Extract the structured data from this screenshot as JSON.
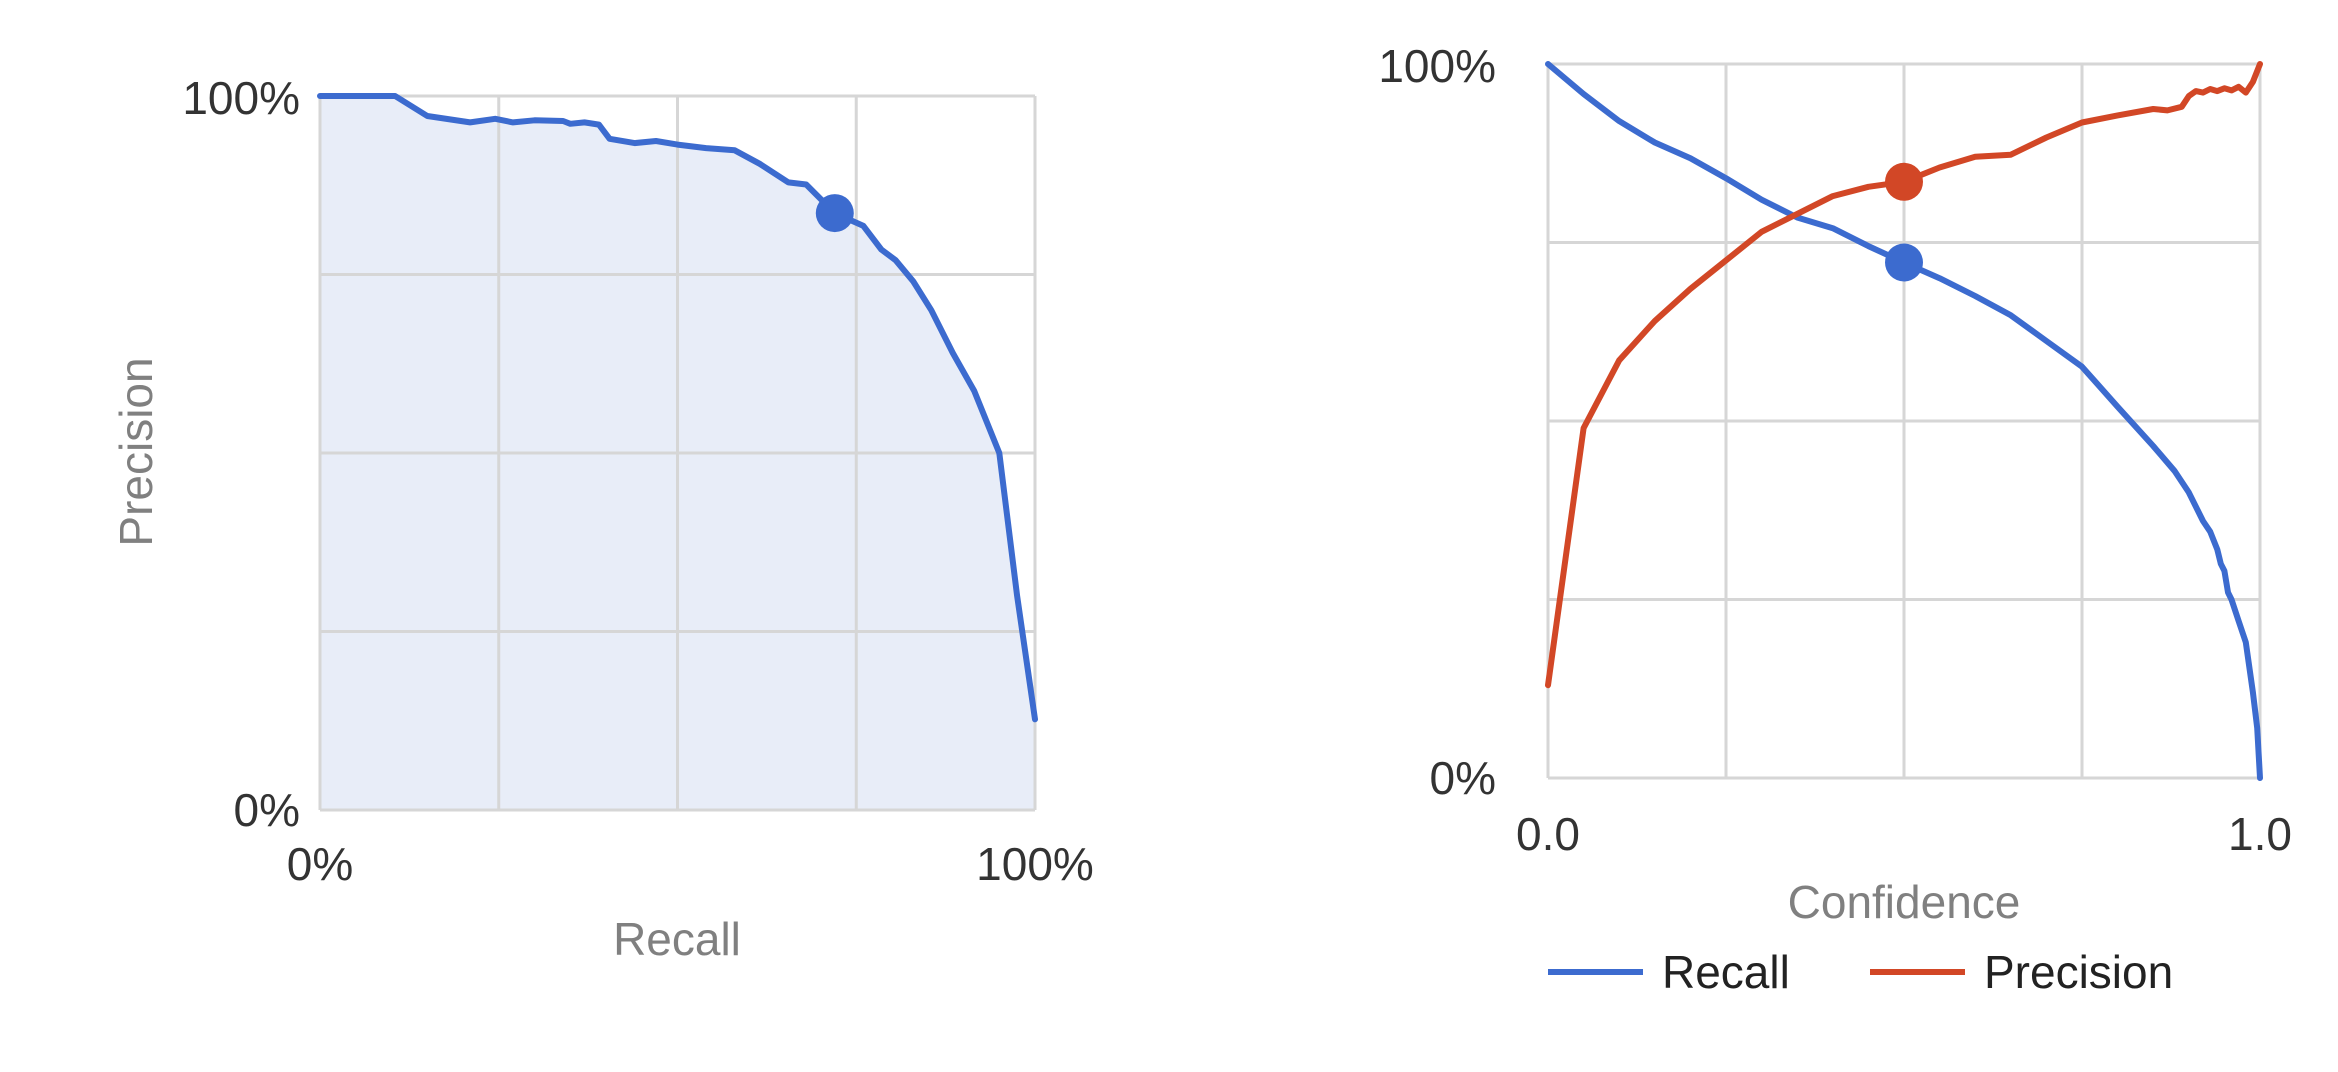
{
  "chart_data": [
    {
      "type": "area",
      "xlabel": "Recall",
      "ylabel": "Precision",
      "x_ticks": [
        "0%",
        "100%"
      ],
      "y_ticks": [
        "0%",
        "100%"
      ],
      "xlim": [
        0,
        1
      ],
      "ylim": [
        0,
        1
      ],
      "grid": true,
      "fill_color": "#e8edf8",
      "grid_color": "#cfd3dc",
      "series": [
        {
          "color": "#3c6bcf",
          "points": [
            [
              0.0,
              1.0
            ],
            [
              0.05,
              1.0
            ],
            [
              0.105,
              1.0
            ],
            [
              0.15,
              0.972
            ],
            [
              0.21,
              0.963
            ],
            [
              0.245,
              0.968
            ],
            [
              0.27,
              0.963
            ],
            [
              0.3,
              0.966
            ],
            [
              0.34,
              0.965
            ],
            [
              0.35,
              0.961
            ],
            [
              0.37,
              0.963
            ],
            [
              0.39,
              0.96
            ],
            [
              0.405,
              0.94
            ],
            [
              0.44,
              0.934
            ],
            [
              0.47,
              0.937
            ],
            [
              0.5,
              0.932
            ],
            [
              0.54,
              0.927
            ],
            [
              0.58,
              0.924
            ],
            [
              0.615,
              0.905
            ],
            [
              0.655,
              0.879
            ],
            [
              0.68,
              0.876
            ],
            [
              0.72,
              0.836
            ],
            [
              0.76,
              0.818
            ],
            [
              0.785,
              0.785
            ],
            [
              0.805,
              0.77
            ],
            [
              0.83,
              0.74
            ],
            [
              0.855,
              0.7
            ],
            [
              0.885,
              0.64
            ],
            [
              0.915,
              0.587
            ],
            [
              0.95,
              0.5
            ],
            [
              0.975,
              0.3
            ],
            [
              1.0,
              0.127
            ]
          ],
          "marker": [
            0.72,
            0.836
          ]
        }
      ]
    },
    {
      "type": "line",
      "xlabel": "Confidence",
      "ylabel": "",
      "x_ticks": [
        "0.0",
        "1.0"
      ],
      "y_ticks": [
        "0%",
        "100%"
      ],
      "xlim": [
        0,
        1
      ],
      "ylim": [
        0,
        1
      ],
      "grid": true,
      "grid_color": "#d6d6d6",
      "legend": "bottom",
      "series": [
        {
          "name": "Recall",
          "color": "#3c6bcf",
          "points": [
            [
              0.0,
              1.0
            ],
            [
              0.05,
              0.958
            ],
            [
              0.1,
              0.92
            ],
            [
              0.15,
              0.89
            ],
            [
              0.2,
              0.868
            ],
            [
              0.25,
              0.84
            ],
            [
              0.3,
              0.81
            ],
            [
              0.35,
              0.785
            ],
            [
              0.4,
              0.77
            ],
            [
              0.45,
              0.745
            ],
            [
              0.5,
              0.722
            ],
            [
              0.55,
              0.7
            ],
            [
              0.6,
              0.675
            ],
            [
              0.65,
              0.648
            ],
            [
              0.7,
              0.612
            ],
            [
              0.75,
              0.576
            ],
            [
              0.8,
              0.52
            ],
            [
              0.85,
              0.465
            ],
            [
              0.88,
              0.43
            ],
            [
              0.9,
              0.4
            ],
            [
              0.92,
              0.36
            ],
            [
              0.93,
              0.345
            ],
            [
              0.94,
              0.32
            ],
            [
              0.945,
              0.3
            ],
            [
              0.95,
              0.29
            ],
            [
              0.955,
              0.26
            ],
            [
              0.96,
              0.25
            ],
            [
              0.97,
              0.22
            ],
            [
              0.98,
              0.19
            ],
            [
              0.99,
              0.12
            ],
            [
              0.996,
              0.07
            ],
            [
              1.0,
              0.0
            ]
          ],
          "marker": [
            0.5,
            0.722
          ]
        },
        {
          "name": "Precision",
          "color": "#d24726",
          "points": [
            [
              0.0,
              0.13
            ],
            [
              0.05,
              0.49
            ],
            [
              0.1,
              0.585
            ],
            [
              0.15,
              0.64
            ],
            [
              0.2,
              0.685
            ],
            [
              0.25,
              0.725
            ],
            [
              0.3,
              0.765
            ],
            [
              0.35,
              0.79
            ],
            [
              0.4,
              0.815
            ],
            [
              0.45,
              0.828
            ],
            [
              0.5,
              0.835
            ],
            [
              0.55,
              0.855
            ],
            [
              0.6,
              0.87
            ],
            [
              0.65,
              0.873
            ],
            [
              0.7,
              0.897
            ],
            [
              0.75,
              0.918
            ],
            [
              0.8,
              0.928
            ],
            [
              0.85,
              0.937
            ],
            [
              0.87,
              0.935
            ],
            [
              0.89,
              0.94
            ],
            [
              0.9,
              0.955
            ],
            [
              0.91,
              0.962
            ],
            [
              0.92,
              0.96
            ],
            [
              0.93,
              0.965
            ],
            [
              0.94,
              0.962
            ],
            [
              0.95,
              0.966
            ],
            [
              0.96,
              0.963
            ],
            [
              0.97,
              0.968
            ],
            [
              0.98,
              0.96
            ],
            [
              0.99,
              0.975
            ],
            [
              1.0,
              1.0
            ]
          ],
          "marker": [
            0.5,
            0.835
          ]
        }
      ]
    }
  ]
}
